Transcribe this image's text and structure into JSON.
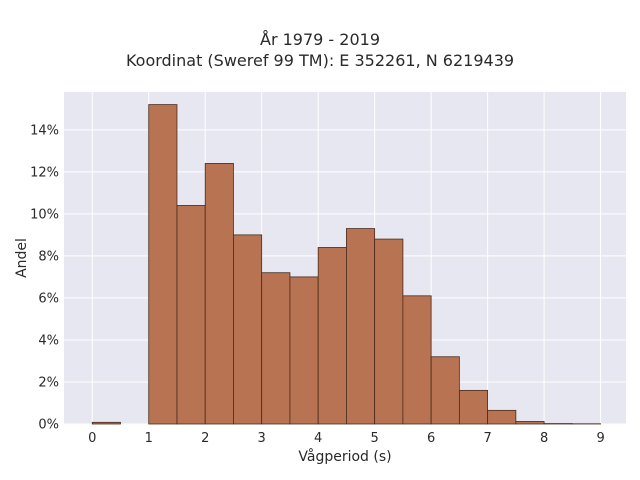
{
  "chart_data": {
    "type": "bar",
    "title_line1": "År 1979 - 2019",
    "title_line2": "Koordinat (Sweref 99 TM): E 352261, N 6219439",
    "xlabel": "Vågperiod (s)",
    "ylabel": "Andel",
    "x_ticks": [
      "0",
      "1",
      "2",
      "3",
      "4",
      "5",
      "6",
      "7",
      "8",
      "9"
    ],
    "y_ticks": [
      "0%",
      "2%",
      "4%",
      "6%",
      "8%",
      "10%",
      "12%",
      "14%"
    ],
    "xlim": [
      -0.5,
      9.45
    ],
    "ylim": [
      0,
      0.158
    ],
    "bin_width": 0.5,
    "bins": [
      {
        "start": 0.0,
        "value": 0.0008
      },
      {
        "start": 0.5,
        "value": 0.0
      },
      {
        "start": 1.0,
        "value": 0.152
      },
      {
        "start": 1.5,
        "value": 0.104
      },
      {
        "start": 2.0,
        "value": 0.124
      },
      {
        "start": 2.5,
        "value": 0.09
      },
      {
        "start": 3.0,
        "value": 0.072
      },
      {
        "start": 3.5,
        "value": 0.07
      },
      {
        "start": 4.0,
        "value": 0.084
      },
      {
        "start": 4.5,
        "value": 0.093
      },
      {
        "start": 5.0,
        "value": 0.088
      },
      {
        "start": 5.5,
        "value": 0.061
      },
      {
        "start": 6.0,
        "value": 0.032
      },
      {
        "start": 6.5,
        "value": 0.016
      },
      {
        "start": 7.0,
        "value": 0.0065
      },
      {
        "start": 7.5,
        "value": 0.0012
      },
      {
        "start": 8.0,
        "value": 0.0002
      },
      {
        "start": 8.5,
        "value": 0.0001
      }
    ],
    "grid": true,
    "colors": {
      "bar_fill": "#b87452",
      "bar_edge": "#4a2a1a",
      "plot_bg": "#e6e7f0",
      "grid": "#ffffff"
    }
  }
}
